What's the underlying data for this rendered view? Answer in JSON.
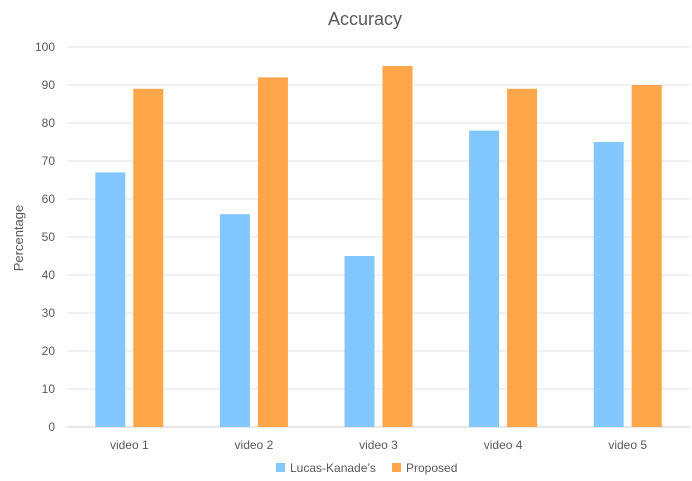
{
  "chart_data": {
    "type": "bar",
    "title": "Accuracy",
    "xlabel": "",
    "ylabel": "Percentage",
    "ylim": [
      0,
      100
    ],
    "yticks": [
      0,
      10,
      20,
      30,
      40,
      50,
      60,
      70,
      80,
      90,
      100
    ],
    "categories": [
      "video 1",
      "video 2",
      "video 3",
      "video 4",
      "video 5"
    ],
    "series": [
      {
        "name": "Lucas-Kanade’s",
        "color": "#82c8ff",
        "values": [
          67,
          56,
          45,
          78,
          75
        ]
      },
      {
        "name": "Proposed",
        "color": "#ffa54a",
        "values": [
          89,
          92,
          95,
          89,
          90
        ]
      }
    ],
    "grid": true,
    "legend_position": "bottom"
  }
}
